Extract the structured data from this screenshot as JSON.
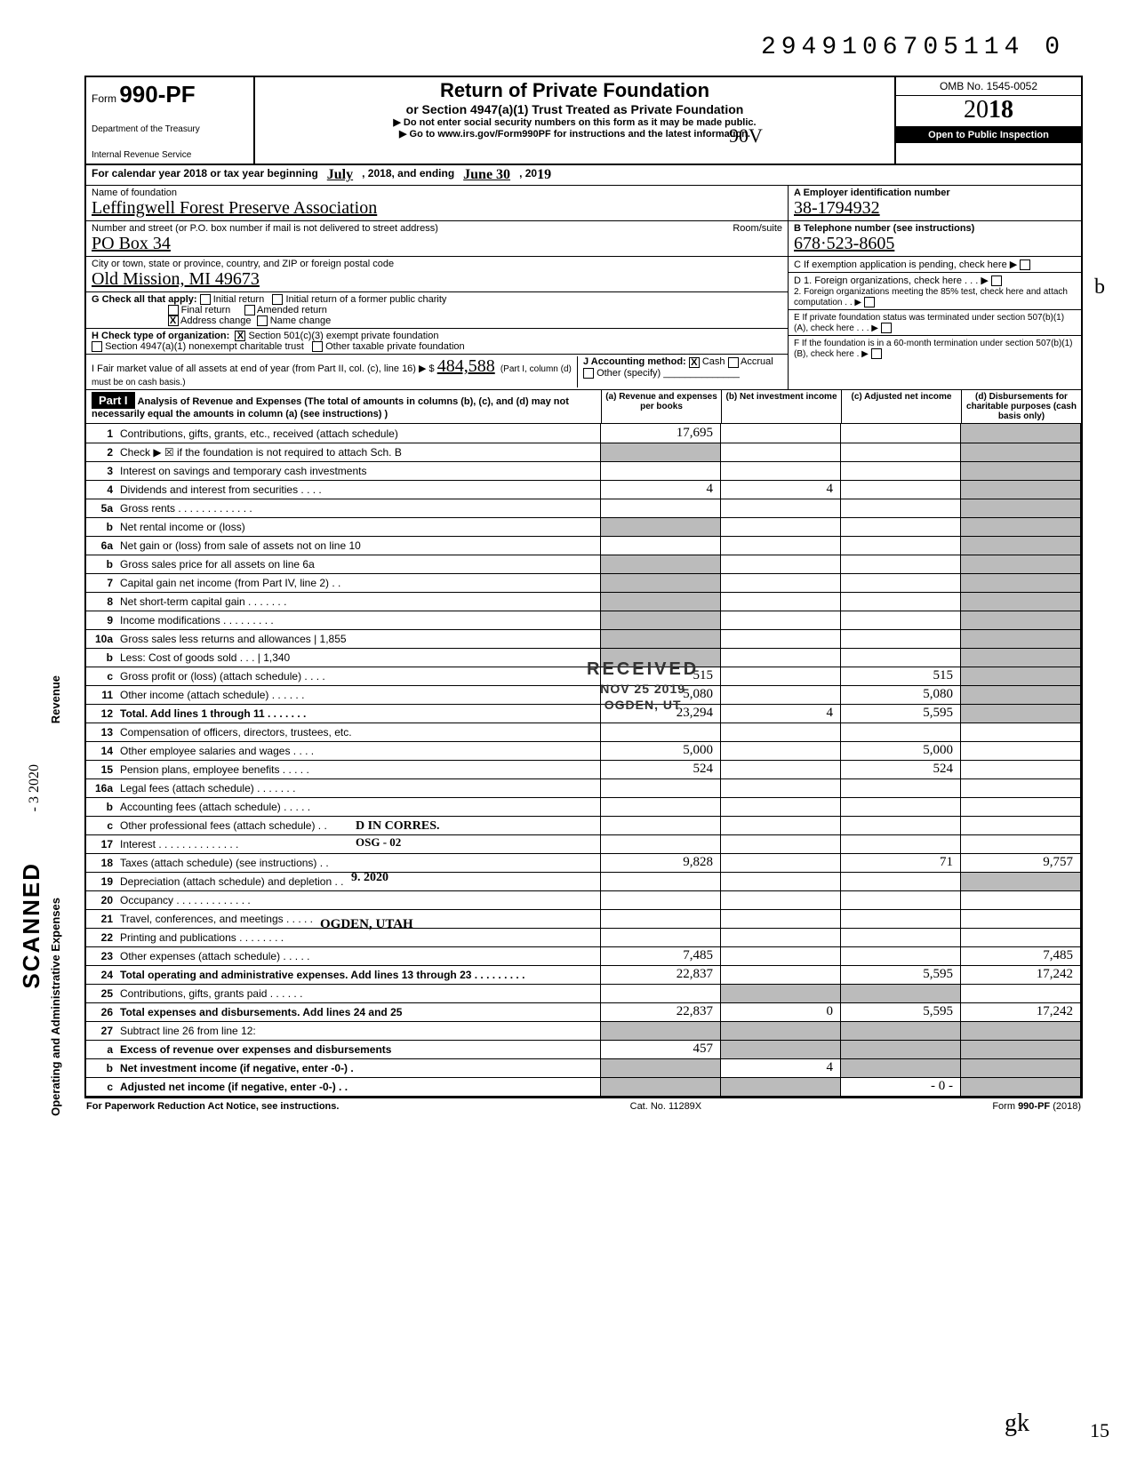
{
  "dln": "2949106705114 0",
  "header": {
    "form_prefix": "Form",
    "form_number": "990-PF",
    "dept_line1": "Department of the Treasury",
    "dept_line2": "Internal Revenue Service",
    "title": "Return of Private Foundation",
    "subtitle": "or Section 4947(a)(1) Trust Treated as Private Foundation",
    "instr1": "▶ Do not enter social security numbers on this form as it may be made public.",
    "instr2": "▶ Go to www.irs.gov/Form990PF for instructions and the latest information.",
    "omb": "OMB No. 1545-0052",
    "year_prefix": "20",
    "year_bold": "18",
    "public_inspection": "Open to Public Inspection",
    "hand_note": "90V"
  },
  "calrow": {
    "label_a": "For calendar year 2018 or tax year beginning",
    "begin": "July",
    "label_b": ", 2018, and ending",
    "end": "June 30",
    "label_c": ", 20",
    "endyr": "19"
  },
  "info": {
    "name_label": "Name of foundation",
    "name": "Leffingwell Forest Preserve Association",
    "addr_label": "Number and street (or P.O. box number if mail is not delivered to street address)",
    "room_label": "Room/suite",
    "addr": "PO Box 34",
    "city_label": "City or town, state or province, country, and ZIP or foreign postal code",
    "city": "Old Mission, MI  49673",
    "g_label": "G  Check all that apply:",
    "g_opts": [
      "Initial return",
      "Initial return of a former public charity",
      "Final return",
      "Amended return",
      "Address change",
      "Name change"
    ],
    "h_label": "H  Check type of organization:",
    "h_opts": [
      "Section 501(c)(3) exempt private foundation",
      "Section 4947(a)(1) nonexempt charitable trust",
      "Other taxable private foundation"
    ],
    "i_label": "I   Fair market value of all assets at end of year (from Part II, col. (c), line 16) ▶ $",
    "i_value": "484,588",
    "i_note": "(Part I, column (d) must be on cash basis.)",
    "j_label": "J  Accounting method:",
    "j_opts": [
      "Cash",
      "Accrual",
      "Other (specify)"
    ],
    "a_label": "A  Employer identification number",
    "a_value": "38-1794932",
    "b_label": "B  Telephone number (see instructions)",
    "b_value": "678·523-8605",
    "c_label": "C  If exemption application is pending, check here ▶",
    "d1_label": "D  1. Foreign organizations, check here . . . ▶",
    "d2_label": "2. Foreign organizations meeting the 85% test, check here and attach computation . . ▶",
    "e_label": "E  If private foundation status was terminated under section 507(b)(1)(A), check here . . . ▶",
    "f_label": "F  If the foundation is in a 60-month termination under section 507(b)(1)(B), check here . ▶"
  },
  "part1": {
    "bar": "Part I",
    "head_desc": "Analysis of Revenue and Expenses (The total of amounts in columns (b), (c), and (d) may not necessarily equal the amounts in column (a) (see instructions) )",
    "cols": [
      "(a) Revenue and expenses per books",
      "(b) Net investment income",
      "(c) Adjusted net income",
      "(d) Disbursements for charitable purposes (cash basis only)"
    ]
  },
  "lines": [
    {
      "n": "1",
      "d": "Contributions, gifts, grants, etc., received (attach schedule)",
      "a": "17,695",
      "shade_d": true
    },
    {
      "n": "2",
      "d": "Check ▶ ☒ if the foundation is not required to attach Sch. B",
      "shade_a": true,
      "shade_d": true
    },
    {
      "n": "3",
      "d": "Interest on savings and temporary cash investments",
      "shade_d": true
    },
    {
      "n": "4",
      "d": "Dividends and interest from securities . . . .",
      "a": "4",
      "b": "4",
      "shade_d": true
    },
    {
      "n": "5a",
      "d": "Gross rents . . . . . . . . . . . . .",
      "shade_d": true
    },
    {
      "n": "b",
      "d": "Net rental income or (loss)",
      "shade_a": true,
      "shade_d": true
    },
    {
      "n": "6a",
      "d": "Net gain or (loss) from sale of assets not on line 10",
      "shade_d": true
    },
    {
      "n": "b",
      "d": "Gross sales price for all assets on line 6a",
      "shade_a": true,
      "shade_d": true
    },
    {
      "n": "7",
      "d": "Capital gain net income (from Part IV, line 2) . .",
      "shade_a": true,
      "shade_d": true
    },
    {
      "n": "8",
      "d": "Net short-term capital gain . . . . . . .",
      "shade_a": true,
      "shade_d": true
    },
    {
      "n": "9",
      "d": "Income modifications . . . . . . . . .",
      "shade_a": true,
      "shade_d": true
    },
    {
      "n": "10a",
      "d": "Gross sales less returns and allowances | 1,855",
      "shade_a": true,
      "shade_d": true
    },
    {
      "n": "b",
      "d": "Less: Cost of goods sold . . . | 1,340",
      "shade_a": true,
      "shade_d": true
    },
    {
      "n": "c",
      "d": "Gross profit or (loss) (attach schedule) . . . .",
      "a": "515",
      "c": "515",
      "shade_d": true
    },
    {
      "n": "11",
      "d": "Other income (attach schedule) . . . . . .",
      "a": "5,080",
      "c": "5,080",
      "shade_d": true
    },
    {
      "n": "12",
      "d": "Total. Add lines 1 through 11 . . . . . . .",
      "a": "23,294",
      "b": "4",
      "c": "5,595",
      "bold": true,
      "shade_d": true
    },
    {
      "n": "13",
      "d": "Compensation of officers, directors, trustees, etc."
    },
    {
      "n": "14",
      "d": "Other employee salaries and wages . . . .",
      "a": "5,000",
      "c": "5,000"
    },
    {
      "n": "15",
      "d": "Pension plans, employee benefits . . . . .",
      "a": "524",
      "c": "524"
    },
    {
      "n": "16a",
      "d": "Legal fees (attach schedule) . . . . . . ."
    },
    {
      "n": "b",
      "d": "Accounting fees (attach schedule) . . . . ."
    },
    {
      "n": "c",
      "d": "Other professional fees (attach schedule) . ."
    },
    {
      "n": "17",
      "d": "Interest . . . . . . . . . . . . . ."
    },
    {
      "n": "18",
      "d": "Taxes (attach schedule) (see instructions) . .",
      "a": "9,828",
      "c": "71",
      "dd": "9,757"
    },
    {
      "n": "19",
      "d": "Depreciation (attach schedule) and depletion . .",
      "shade_d": true
    },
    {
      "n": "20",
      "d": "Occupancy . . . . . . . . . . . . ."
    },
    {
      "n": "21",
      "d": "Travel, conferences, and meetings . . . . ."
    },
    {
      "n": "22",
      "d": "Printing and publications . . . . . . . ."
    },
    {
      "n": "23",
      "d": "Other expenses (attach schedule) . . . . .",
      "a": "7,485",
      "dd": "7,485"
    },
    {
      "n": "24",
      "d": "Total operating and administrative expenses. Add lines 13 through 23 . . . . . . . . .",
      "a": "22,837",
      "c": "5,595",
      "dd": "17,242",
      "bold": true
    },
    {
      "n": "25",
      "d": "Contributions, gifts, grants paid . . . . . .",
      "shade_b": true,
      "shade_c": true
    },
    {
      "n": "26",
      "d": "Total expenses and disbursements. Add lines 24 and 25",
      "a": "22,837",
      "b": "0",
      "c": "5,595",
      "dd": "17,242",
      "bold": true
    },
    {
      "n": "27",
      "d": "Subtract line 26 from line 12:",
      "shade_a": true,
      "shade_b": true,
      "shade_c": true,
      "shade_d": true
    },
    {
      "n": "a",
      "d": "Excess of revenue over expenses and disbursements",
      "a": "457",
      "bold": true,
      "shade_b": true,
      "shade_c": true,
      "shade_d": true
    },
    {
      "n": "b",
      "d": "Net investment income (if negative, enter -0-) .",
      "b": "4",
      "bold": true,
      "shade_a": true,
      "shade_c": true,
      "shade_d": true
    },
    {
      "n": "c",
      "d": "Adjusted net income (if negative, enter -0-) . .",
      "c": "- 0 -",
      "bold": true,
      "shade_a": true,
      "shade_b": true,
      "shade_d": true
    }
  ],
  "footer": {
    "left": "For Paperwork Reduction Act Notice, see instructions.",
    "mid": "Cat. No. 11289X",
    "right_a": "Form ",
    "right_b": "990-PF",
    "right_c": " (2018)"
  },
  "side": {
    "scanned": "SCANNED",
    "revenue": "Revenue",
    "expenses": "Operating and Administrative Expenses",
    "date_stamp": "- 3 2020"
  },
  "stamps": {
    "received": "RECEIVED",
    "recv_date": "NOV 25 2019",
    "recv_city": "OGDEN, UT",
    "corres": "D IN CORRES.",
    "osg": "OSG - 02",
    "date2020": "9. 2020",
    "ogden2": "OGDEN, UTAH",
    "initials": "gk",
    "margin_b": "b",
    "margin_15": "15"
  }
}
